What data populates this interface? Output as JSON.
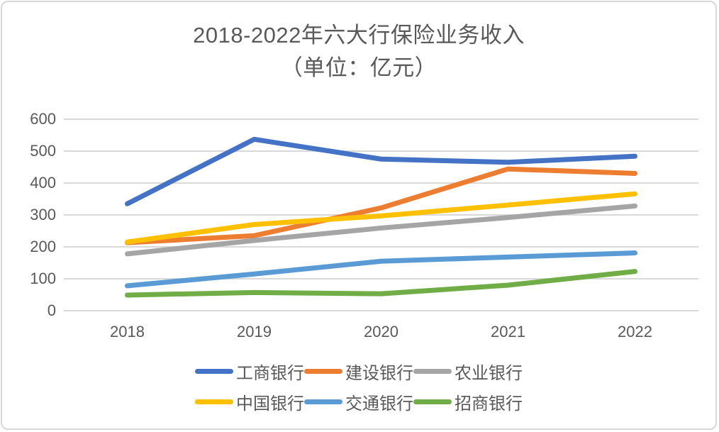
{
  "chart_data": {
    "type": "line",
    "title": "2018-2022年六大行保险业务收入",
    "subtitle": "（单位：亿元）",
    "categories": [
      "2018",
      "2019",
      "2020",
      "2021",
      "2022"
    ],
    "series": [
      {
        "name": "工商银行",
        "color": "#4472C4",
        "values": [
          335,
          537,
          475,
          465,
          484
        ]
      },
      {
        "name": "建设银行",
        "color": "#ED7D31",
        "values": [
          213,
          235,
          322,
          444,
          430
        ]
      },
      {
        "name": "农业银行",
        "color": "#A5A5A5",
        "values": [
          178,
          220,
          259,
          292,
          328
        ]
      },
      {
        "name": "中国银行",
        "color": "#FFC000",
        "values": [
          215,
          270,
          297,
          331,
          366
        ]
      },
      {
        "name": "交通银行",
        "color": "#5B9BD5",
        "values": [
          78,
          115,
          155,
          168,
          181
        ]
      },
      {
        "name": "招商银行",
        "color": "#70AD47",
        "values": [
          49,
          57,
          53,
          80,
          123
        ]
      }
    ],
    "ylim": [
      0,
      600
    ],
    "ytick_step": 100,
    "yticks": [
      "0",
      "100",
      "200",
      "300",
      "400",
      "500",
      "600"
    ],
    "grid": true,
    "legend_position": "bottom",
    "legend_rows": [
      [
        "工商银行",
        "建设银行",
        "农业银行"
      ],
      [
        "中国银行",
        "交通银行",
        "招商银行"
      ]
    ],
    "colors": {
      "title_text": "#595959",
      "axis_text": "#595959",
      "gridline": "#D9D9D9",
      "frame_border": "#D8D8D8",
      "background": "#FFFFFF"
    }
  }
}
